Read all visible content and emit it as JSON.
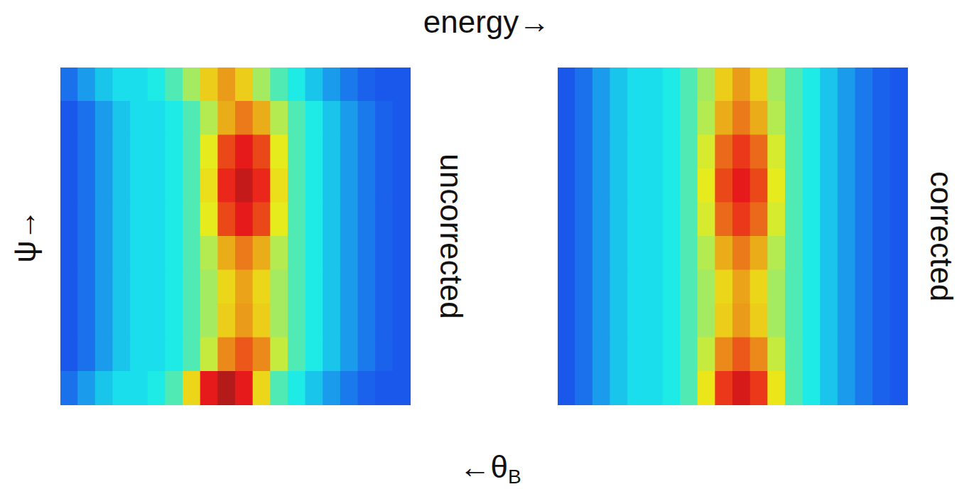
{
  "labels": {
    "top": "energy→",
    "left": "ψ→",
    "bottom": "←θB"
  },
  "chart_data": [
    {
      "type": "heatmap",
      "title": "uncorrected",
      "tick_labels": false,
      "zlim": [
        0,
        10
      ],
      "cells": [
        [
          2.3,
          2.8,
          3.3,
          3.6,
          3.6,
          3.8,
          4.4,
          5.4,
          6.6,
          7.2,
          6.6,
          5.4,
          4.4,
          3.8,
          3.3,
          2.8,
          2.4,
          2.1,
          2.0,
          2.0
        ],
        [
          2.0,
          2.3,
          2.8,
          3.3,
          3.6,
          3.6,
          3.8,
          4.4,
          5.6,
          7.0,
          7.6,
          7.0,
          5.6,
          4.4,
          3.8,
          3.3,
          2.8,
          2.4,
          2.1,
          2.0
        ],
        [
          2.0,
          2.3,
          2.8,
          3.3,
          3.6,
          3.6,
          3.8,
          4.4,
          6.2,
          8.2,
          8.8,
          8.2,
          6.2,
          4.4,
          3.8,
          3.3,
          2.8,
          2.4,
          2.1,
          2.0
        ],
        [
          2.0,
          2.3,
          2.8,
          3.3,
          3.6,
          3.6,
          3.8,
          4.4,
          6.4,
          8.6,
          9.2,
          8.6,
          6.4,
          4.4,
          3.8,
          3.3,
          2.8,
          2.4,
          2.1,
          2.0
        ],
        [
          2.0,
          2.3,
          2.8,
          3.3,
          3.6,
          3.6,
          3.8,
          4.4,
          6.2,
          8.2,
          8.8,
          8.2,
          6.2,
          4.4,
          3.8,
          3.3,
          2.8,
          2.4,
          2.1,
          2.0
        ],
        [
          2.0,
          2.3,
          2.8,
          3.3,
          3.6,
          3.6,
          3.8,
          4.4,
          5.6,
          7.0,
          7.6,
          7.0,
          5.6,
          4.4,
          3.8,
          3.3,
          2.8,
          2.4,
          2.1,
          2.0
        ],
        [
          2.0,
          2.3,
          2.8,
          3.3,
          3.6,
          3.6,
          3.8,
          4.4,
          5.4,
          6.5,
          7.1,
          6.5,
          5.4,
          4.4,
          3.8,
          3.3,
          2.8,
          2.4,
          2.1,
          2.0
        ],
        [
          2.0,
          2.3,
          2.8,
          3.3,
          3.6,
          3.6,
          3.8,
          4.4,
          5.4,
          6.6,
          7.2,
          6.6,
          5.4,
          4.4,
          3.8,
          3.3,
          2.8,
          2.4,
          2.1,
          2.0
        ],
        [
          2.0,
          2.3,
          2.8,
          3.3,
          3.6,
          3.6,
          3.8,
          4.4,
          5.8,
          7.4,
          8.0,
          7.4,
          5.8,
          4.4,
          3.8,
          3.3,
          2.8,
          2.4,
          2.1,
          2.0
        ],
        [
          2.3,
          2.8,
          3.3,
          3.6,
          3.6,
          3.8,
          4.4,
          6.5,
          8.8,
          9.4,
          8.8,
          6.5,
          4.4,
          3.8,
          3.3,
          2.8,
          2.4,
          2.1,
          2.0,
          2.0
        ]
      ]
    },
    {
      "type": "heatmap",
      "title": "corrected",
      "tick_labels": false,
      "zlim": [
        0,
        10
      ],
      "cells": [
        [
          2.0,
          2.3,
          2.8,
          3.3,
          3.6,
          3.6,
          3.8,
          4.4,
          5.4,
          6.6,
          7.2,
          6.6,
          5.4,
          4.4,
          3.8,
          3.3,
          2.8,
          2.4,
          2.1,
          2.0
        ],
        [
          2.0,
          2.3,
          2.8,
          3.3,
          3.6,
          3.6,
          3.8,
          4.4,
          5.6,
          7.0,
          7.6,
          7.0,
          5.6,
          4.4,
          3.8,
          3.3,
          2.8,
          2.4,
          2.1,
          2.0
        ],
        [
          2.0,
          2.3,
          2.8,
          3.3,
          3.6,
          3.6,
          3.8,
          4.4,
          6.0,
          7.8,
          8.4,
          7.8,
          6.0,
          4.4,
          3.8,
          3.3,
          2.8,
          2.4,
          2.1,
          2.0
        ],
        [
          2.0,
          2.3,
          2.8,
          3.3,
          3.6,
          3.6,
          3.8,
          4.4,
          6.2,
          8.2,
          8.8,
          8.2,
          6.2,
          4.4,
          3.8,
          3.3,
          2.8,
          2.4,
          2.1,
          2.0
        ],
        [
          2.0,
          2.3,
          2.8,
          3.3,
          3.6,
          3.6,
          3.8,
          4.4,
          6.0,
          7.8,
          8.4,
          7.8,
          6.0,
          4.4,
          3.8,
          3.3,
          2.8,
          2.4,
          2.1,
          2.0
        ],
        [
          2.0,
          2.3,
          2.8,
          3.3,
          3.6,
          3.6,
          3.8,
          4.4,
          5.6,
          7.0,
          7.6,
          7.0,
          5.6,
          4.4,
          3.8,
          3.3,
          2.8,
          2.4,
          2.1,
          2.0
        ],
        [
          2.0,
          2.3,
          2.8,
          3.3,
          3.6,
          3.6,
          3.8,
          4.4,
          5.4,
          6.5,
          7.1,
          6.5,
          5.4,
          4.4,
          3.8,
          3.3,
          2.8,
          2.4,
          2.1,
          2.0
        ],
        [
          2.0,
          2.3,
          2.8,
          3.3,
          3.6,
          3.6,
          3.8,
          4.4,
          5.4,
          6.6,
          7.2,
          6.6,
          5.4,
          4.4,
          3.8,
          3.3,
          2.8,
          2.4,
          2.1,
          2.0
        ],
        [
          2.0,
          2.3,
          2.8,
          3.3,
          3.6,
          3.6,
          3.8,
          4.4,
          5.8,
          7.4,
          8.0,
          7.4,
          5.8,
          4.4,
          3.8,
          3.3,
          2.8,
          2.4,
          2.1,
          2.0
        ],
        [
          2.0,
          2.3,
          2.8,
          3.3,
          3.6,
          3.6,
          3.8,
          4.4,
          6.3,
          8.4,
          9.0,
          8.4,
          6.3,
          4.4,
          3.8,
          3.3,
          2.8,
          2.4,
          2.1,
          2.0
        ]
      ]
    }
  ]
}
